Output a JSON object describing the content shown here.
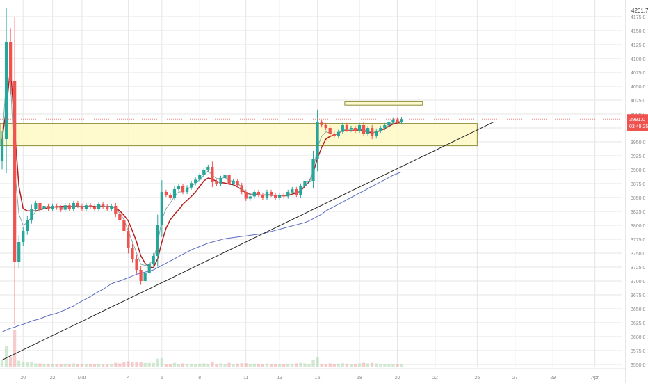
{
  "chart_data": {
    "type": "candlestick",
    "price_axis": {
      "ticks": [
        4175.0,
        4150.0,
        4125.0,
        4100.0,
        4075.0,
        4050.0,
        4025.0,
        4000.0,
        3975.0,
        3950.0,
        3925.0,
        3900.0,
        3875.0,
        3850.0,
        3825.0,
        3800.0,
        3775.0,
        3750.0,
        3725.0,
        3700.0,
        3675.0,
        3650.0,
        3625.0,
        3600.0,
        3575.0,
        3550.0
      ],
      "ylim": [
        3545,
        4205
      ],
      "top_label": "4201.7"
    },
    "time_axis": {
      "ticks": [
        {
          "label": "20",
          "index": 5
        },
        {
          "label": "22",
          "index": 12
        },
        {
          "label": "Mar",
          "index": 19
        },
        {
          "label": "4",
          "index": 30
        },
        {
          "label": "6",
          "index": 38
        },
        {
          "label": "8",
          "index": 47
        },
        {
          "label": "11",
          "index": 58
        },
        {
          "label": "13",
          "index": 66
        },
        {
          "label": "15",
          "index": 75
        },
        {
          "label": "18",
          "index": 85
        },
        {
          "label": "20",
          "index": 94
        },
        {
          "label": "22",
          "index": 103
        },
        {
          "label": "25",
          "index": 113
        },
        {
          "label": "27",
          "index": 122
        },
        {
          "label": "29",
          "index": 131
        },
        {
          "label": "Apr",
          "index": 141
        }
      ],
      "total_slots": 148
    },
    "price_badge": {
      "price": "3991.0",
      "countdown": "03:49:25",
      "value": 3991.0,
      "color": "#ef5350"
    },
    "closes": [
      3955,
      4130,
      4060,
      3735,
      3770,
      3790,
      3810,
      3830,
      3840,
      3830,
      3835,
      3830,
      3835,
      3832,
      3828,
      3836,
      3830,
      3840,
      3835,
      3830,
      3836,
      3833,
      3830,
      3838,
      3834,
      3830,
      3835,
      3820,
      3810,
      3790,
      3760,
      3740,
      3720,
      3700,
      3715,
      3730,
      3745,
      3800,
      3860,
      3855,
      3850,
      3865,
      3870,
      3860,
      3868,
      3876,
      3882,
      3890,
      3900,
      3905,
      3878,
      3875,
      3885,
      3890,
      3875,
      3880,
      3872,
      3860,
      3848,
      3852,
      3860,
      3855,
      3850,
      3860,
      3855,
      3850,
      3855,
      3852,
      3860,
      3865,
      3855,
      3870,
      3880,
      3880,
      3920,
      3985,
      3980,
      3975,
      3965,
      3960,
      3968,
      3980,
      3972,
      3975,
      3970,
      3980,
      3965,
      3975,
      3960,
      3970,
      3975,
      3980,
      3985,
      3990,
      3985,
      3991
    ],
    "series": [
      {
        "name": "",
        "color": "#b71c1c",
        "values": [
          3955,
          4010,
          4085,
          3970,
          3870,
          3830,
          3826,
          3826,
          3826,
          3828,
          3830,
          3831,
          3833,
          3833,
          3834,
          3834,
          3834,
          3834,
          3834,
          3834,
          3834,
          3834,
          3834,
          3833,
          3834,
          3834,
          3834,
          3831,
          3826,
          3818,
          3808,
          3790,
          3770,
          3745,
          3732,
          3725,
          3724,
          3740,
          3770,
          3795,
          3810,
          3820,
          3828,
          3838,
          3845,
          3852,
          3860,
          3870,
          3880,
          3885,
          3883,
          3879,
          3877,
          3876,
          3874,
          3873,
          3869,
          3864,
          3858,
          3856,
          3855,
          3855,
          3854,
          3855,
          3854,
          3854,
          3854,
          3853,
          3854,
          3856,
          3858,
          3862,
          3870,
          3878,
          3895,
          3920,
          3940,
          3955,
          3960,
          3962,
          3966,
          3970,
          3970,
          3970,
          3970,
          3972,
          3970,
          3968,
          3966,
          3968,
          3970,
          3974,
          3978,
          3982,
          3984,
          3986
        ]
      },
      {
        "name": "",
        "color": "#7fa9a7",
        "values": [
          3955,
          4060,
          4060,
          3900,
          3820,
          3800,
          3805,
          3815,
          3825,
          3828,
          3832,
          3832,
          3833,
          3833,
          3832,
          3833,
          3833,
          3835,
          3835,
          3834,
          3834,
          3834,
          3833,
          3835,
          3835,
          3834,
          3834,
          3830,
          3822,
          3810,
          3790,
          3770,
          3750,
          3730,
          3728,
          3730,
          3738,
          3768,
          3810,
          3830,
          3840,
          3852,
          3860,
          3860,
          3864,
          3870,
          3876,
          3882,
          3890,
          3898,
          3890,
          3884,
          3884,
          3886,
          3880,
          3880,
          3876,
          3868,
          3858,
          3855,
          3857,
          3856,
          3853,
          3856,
          3855,
          3853,
          3854,
          3853,
          3856,
          3860,
          3858,
          3863,
          3872,
          3876,
          3898,
          3940,
          3960,
          3968,
          3966,
          3963,
          3965,
          3972,
          3972,
          3973,
          3971,
          3975,
          3970,
          3972,
          3966,
          3968,
          3971,
          3975,
          3980,
          3985,
          3985,
          3988
        ]
      },
      {
        "name": "",
        "color": "#5c6bc0",
        "values": [
          3608,
          3612,
          3615,
          3617,
          3620,
          3622,
          3625,
          3628,
          3630,
          3632,
          3635,
          3638,
          3640,
          3642,
          3645,
          3648,
          3652,
          3655,
          3660,
          3664,
          3668,
          3672,
          3677,
          3681,
          3685,
          3690,
          3695,
          3698,
          3700,
          3703,
          3706,
          3709,
          3712,
          3714,
          3716,
          3718,
          3720,
          3724,
          3728,
          3732,
          3736,
          3740,
          3744,
          3748,
          3752,
          3756,
          3759,
          3762,
          3765,
          3768,
          3770,
          3772,
          3774,
          3776,
          3777,
          3778,
          3779,
          3780,
          3781,
          3782,
          3783,
          3784,
          3785,
          3787,
          3789,
          3791,
          3793,
          3795,
          3797,
          3799,
          3801,
          3803,
          3805,
          3808,
          3812,
          3816,
          3820,
          3826,
          3830,
          3834,
          3838,
          3842,
          3846,
          3850,
          3854,
          3858,
          3862,
          3866,
          3870,
          3874,
          3878,
          3882,
          3886,
          3890,
          3893,
          3896
        ]
      }
    ],
    "trendline": {
      "start": {
        "index": 0,
        "price": 3558
      },
      "end": {
        "index": 117,
        "price": 3986
      },
      "color": "#222222"
    },
    "zones": [
      {
        "from_index": 0,
        "to_index": 113,
        "top": 3983,
        "bottom": 3943,
        "fill": "#fff9c4",
        "stroke": "#8d8d3a"
      },
      {
        "from_index": 82,
        "to_index": 100,
        "top": 4023,
        "bottom": 4016,
        "fill": "#fff9c4",
        "stroke": "#8d8d3a"
      }
    ],
    "bull_color": "#26a69a",
    "bear_color": "#ef5350"
  }
}
